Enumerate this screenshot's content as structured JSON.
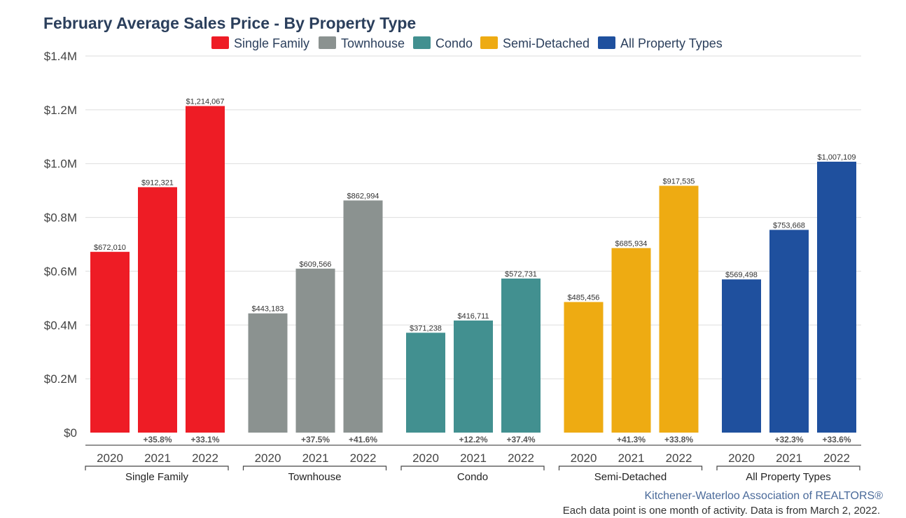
{
  "chart_data": {
    "type": "bar",
    "title": "February Average Sales Price - By Property Type",
    "groups": [
      "Single Family",
      "Townhouse",
      "Condo",
      "Semi-Detached",
      "All Property Types"
    ],
    "years": [
      "2020",
      "2021",
      "2022"
    ],
    "colors": [
      "#ee1c25",
      "#8b9290",
      "#429090",
      "#eeab12",
      "#1f509e"
    ],
    "values": [
      [
        672010,
        912321,
        1214067
      ],
      [
        443183,
        609566,
        862994
      ],
      [
        371238,
        416711,
        572731
      ],
      [
        485456,
        685934,
        917535
      ],
      [
        569498,
        753668,
        1007109
      ]
    ],
    "value_labels": [
      [
        "$672,010",
        "$912,321",
        "$1,214,067"
      ],
      [
        "$443,183",
        "$609,566",
        "$862,994"
      ],
      [
        "$371,238",
        "$416,711",
        "$572,731"
      ],
      [
        "$485,456",
        "$685,934",
        "$917,535"
      ],
      [
        "$569,498",
        "$753,668",
        "$1,007,109"
      ]
    ],
    "change_labels": [
      [
        "",
        "+35.8%",
        "+33.1%"
      ],
      [
        "",
        "+37.5%",
        "+41.6%"
      ],
      [
        "",
        "+12.2%",
        "+37.4%"
      ],
      [
        "",
        "+41.3%",
        "+33.8%"
      ],
      [
        "",
        "+32.3%",
        "+33.6%"
      ]
    ],
    "ylim": [
      0,
      1400000
    ],
    "yticks": [
      0,
      200000,
      400000,
      600000,
      800000,
      1000000,
      1200000,
      1400000
    ],
    "ytick_labels": [
      "$0",
      "$0.2M",
      "$0.4M",
      "$0.6M",
      "$0.8M",
      "$1.0M",
      "$1.2M",
      "$1.4M"
    ],
    "grid": true,
    "legend": [
      "Single Family",
      "Townhouse",
      "Condo",
      "Semi-Detached",
      "All Property Types"
    ],
    "legend_position": "top-center"
  },
  "source": "Kitchener-Waterloo Association of REALTORS®",
  "note": "Each data point is one month of activity. Data is from March 2, 2022."
}
